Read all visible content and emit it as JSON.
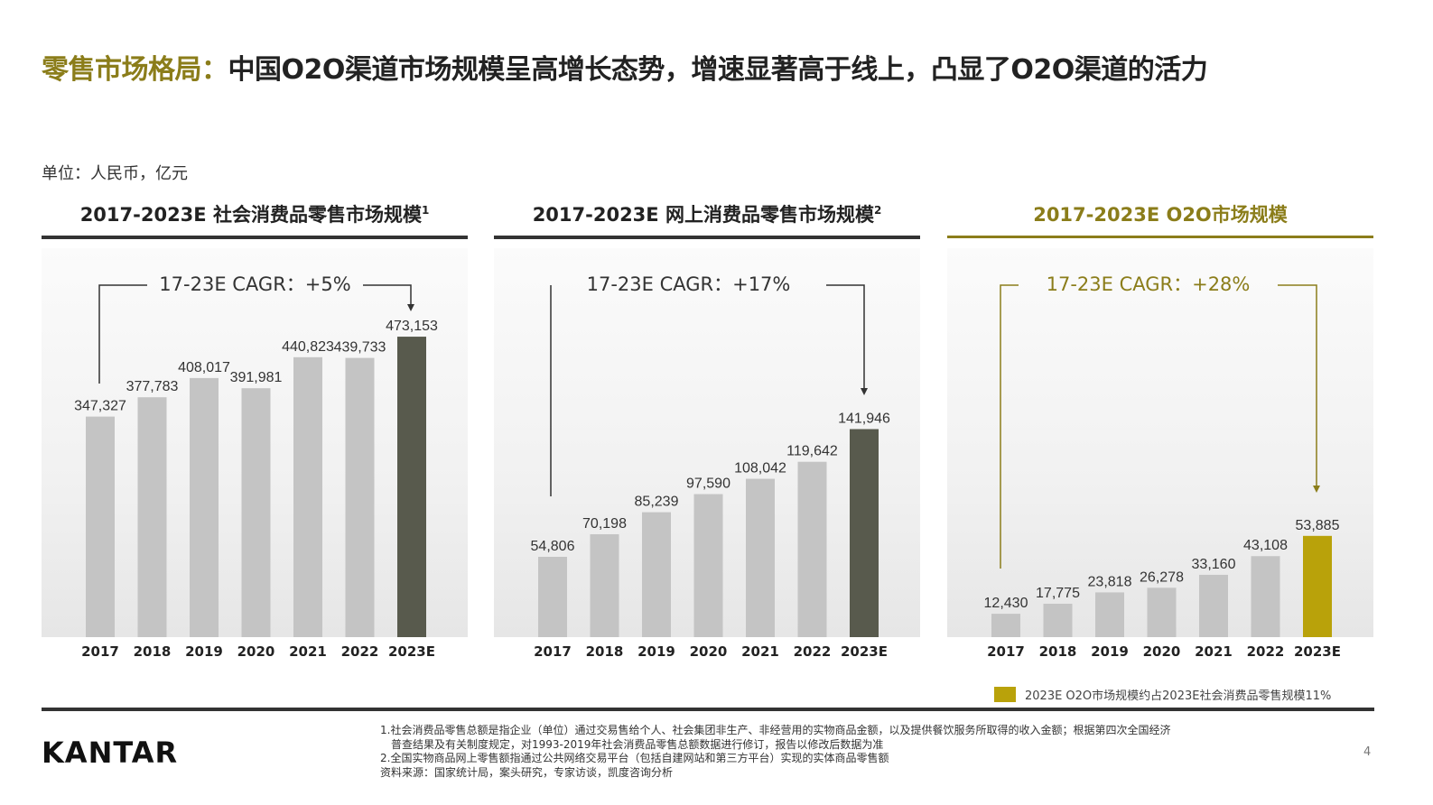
{
  "title": {
    "highlight": "零售市场格局：",
    "main": "中国O2O渠道市场规模呈高增长态势，增速显著高于线上，凸显了O2O渠道的活力"
  },
  "unit": "单位：人民币，亿元",
  "colors": {
    "bar": "#c4c4c4",
    "highlight_dark": "#585a4d",
    "highlight_gold": "#b9a20a",
    "accent_gold": "#8b7d1a",
    "rule_dark": "#333333"
  },
  "chart_data": [
    {
      "type": "bar",
      "title": "2017-2023E 社会消费品零售市场规模",
      "title_sup": "1",
      "cagr": "17-23E CAGR：+5%",
      "categories": [
        "2017",
        "2018",
        "2019",
        "2020",
        "2021",
        "2022",
        "2023E"
      ],
      "values": [
        347327,
        377783,
        408017,
        391981,
        440823,
        439733,
        473153
      ],
      "labels": [
        "347,327",
        "377,783",
        "408,017",
        "391,981",
        "440,823",
        "439,733",
        "473,153"
      ],
      "ylim": [
        0,
        577000
      ],
      "grid": false,
      "highlight_color": "#585a4d"
    },
    {
      "type": "bar",
      "title": "2017-2023E 网上消费品零售市场规模",
      "title_sup": "2",
      "cagr": "17-23E CAGR：+17%",
      "categories": [
        "2017",
        "2018",
        "2019",
        "2020",
        "2021",
        "2022",
        "2023E"
      ],
      "values": [
        54806,
        70198,
        85239,
        97590,
        108042,
        119642,
        141946
      ],
      "labels": [
        "54,806",
        "70,198",
        "85,239",
        "97,590",
        "108,042",
        "119,642",
        "141,946"
      ],
      "ylim": [
        0,
        250000
      ],
      "grid": false,
      "highlight_color": "#585a4d"
    },
    {
      "type": "bar",
      "title": "2017-2023E O2O市场规模",
      "title_sup": "",
      "cagr": "17-23E CAGR：+28%",
      "categories": [
        "2017",
        "2018",
        "2019",
        "2020",
        "2021",
        "2022",
        "2023E"
      ],
      "values": [
        12430,
        17775,
        23818,
        26278,
        33160,
        43108,
        53885
      ],
      "labels": [
        "12,430",
        "17,775",
        "23,818",
        "26,278",
        "33,160",
        "43,108",
        "53,885"
      ],
      "ylim": [
        0,
        195000
      ],
      "grid": false,
      "highlight_color": "#b9a20a"
    }
  ],
  "legend": "2023E O2O市场规模约占2023E社会消费品零售规模11%",
  "notes": [
    "1.社会消费品零售总额是指企业（单位）通过交易售给个人、社会集团非生产、非经营用的实物商品金额，以及提供餐饮服务所取得的收入金额；根据第四次全国经济",
    "普查结果及有关制度规定，对1993-2019年社会消费品零售总额数据进行修订，报告以修改后数据为准",
    "2.全国实物商品网上零售额指通过公共网络交易平台（包括自建网站和第三方平台）实现的实体商品零售额",
    "资料来源：国家统计局，案头研究，专家访谈，凯度咨询分析"
  ],
  "logo": "KANTAR",
  "page_number": "4"
}
